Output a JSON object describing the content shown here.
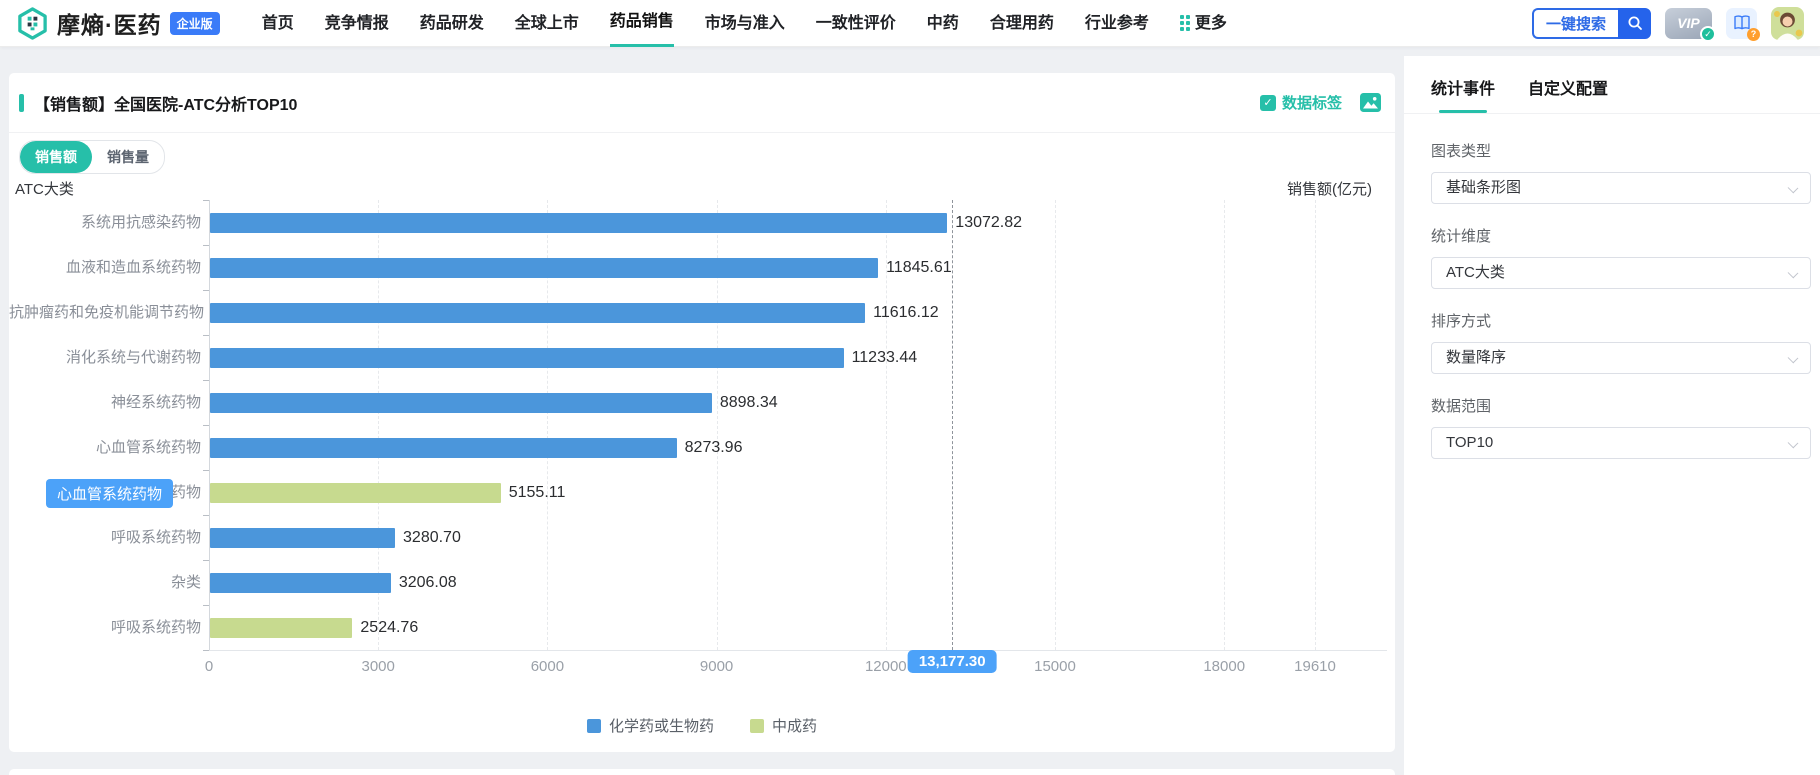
{
  "navbar": {
    "brand": "摩熵·医药",
    "badge": "企业版",
    "items": [
      {
        "label": "首页"
      },
      {
        "label": "竞争情报"
      },
      {
        "label": "药品研发"
      },
      {
        "label": "全球上市"
      },
      {
        "label": "药品销售",
        "active": true
      },
      {
        "label": "市场与准入"
      },
      {
        "label": "一致性评价"
      },
      {
        "label": "中药"
      },
      {
        "label": "合理用药"
      },
      {
        "label": "行业参考"
      },
      {
        "label": "更多",
        "icon": "grid-dots-icon"
      }
    ],
    "search_label": "一键搜索",
    "right_icons": [
      "vip-badge-icon",
      "user-manual-icon",
      "user-avatar"
    ]
  },
  "chart_card": {
    "title": "【销售额】全国医院-ATC分析TOP10",
    "data_label_checkbox": {
      "label": "数据标签",
      "checked": true
    },
    "export_image_icon": "image-export-icon",
    "toggles": [
      {
        "label": "销售额",
        "active": true
      },
      {
        "label": "销售量",
        "active": false
      }
    ],
    "tooltip": {
      "text": "心血管系统药物",
      "row_index": 6
    }
  },
  "chart_data": {
    "type": "bar",
    "orientation": "horizontal",
    "title": "【销售额】全国医院-ATC分析TOP10",
    "ylabel": "ATC大类",
    "xlabel": "销售额(亿元)",
    "xlim": [
      0,
      19610
    ],
    "x_ticks": [
      0,
      3000,
      6000,
      9000,
      12000,
      15000,
      18000,
      19610
    ],
    "grid": "dashed-vertical",
    "legend_position": "bottom",
    "series": [
      {
        "name": "化学药或生物药",
        "color": "#4b96db"
      },
      {
        "name": "中成药",
        "color": "#c7da8f"
      }
    ],
    "bars": [
      {
        "category": "系统用抗感染药物",
        "value": 13072.82,
        "series": "化学药或生物药"
      },
      {
        "category": "血液和造血系统药物",
        "value": 11845.61,
        "series": "化学药或生物药"
      },
      {
        "category": "抗肿瘤药和免疫机能调节药物",
        "value": 11616.12,
        "series": "化学药或生物药"
      },
      {
        "category": "消化系统与代谢药物",
        "value": 11233.44,
        "series": "化学药或生物药"
      },
      {
        "category": "神经系统药物",
        "value": 8898.34,
        "series": "化学药或生物药"
      },
      {
        "category": "心血管系统药物",
        "value": 8273.96,
        "series": "化学药或生物药"
      },
      {
        "category": "心血管系统药物",
        "value": 5155.11,
        "series": "中成药"
      },
      {
        "category": "呼吸系统药物",
        "value": 3280.7,
        "series": "化学药或生物药"
      },
      {
        "category": "杂类",
        "value": 3206.08,
        "series": "化学药或生物药"
      },
      {
        "category": "呼吸系统药物",
        "value": 2524.76,
        "series": "中成药"
      }
    ],
    "average_marker": {
      "value": 13177.3,
      "label": "13,177.30"
    }
  },
  "sidebar": {
    "tabs": [
      {
        "label": "统计事件",
        "active": true
      },
      {
        "label": "自定义配置",
        "active": false
      }
    ],
    "fields": [
      {
        "label": "图表类型",
        "value": "基础条形图"
      },
      {
        "label": "统计维度",
        "value": "ATC大类"
      },
      {
        "label": "排序方式",
        "value": "数量降序"
      },
      {
        "label": "数据范围",
        "value": "TOP10"
      }
    ]
  },
  "colors": {
    "accent_teal": "#26bfa9",
    "brand_blue": "#3a7bf8",
    "bar_blue": "#4b96db",
    "bar_green": "#c7da8f",
    "tooltip_blue": "#4ca2f9"
  }
}
